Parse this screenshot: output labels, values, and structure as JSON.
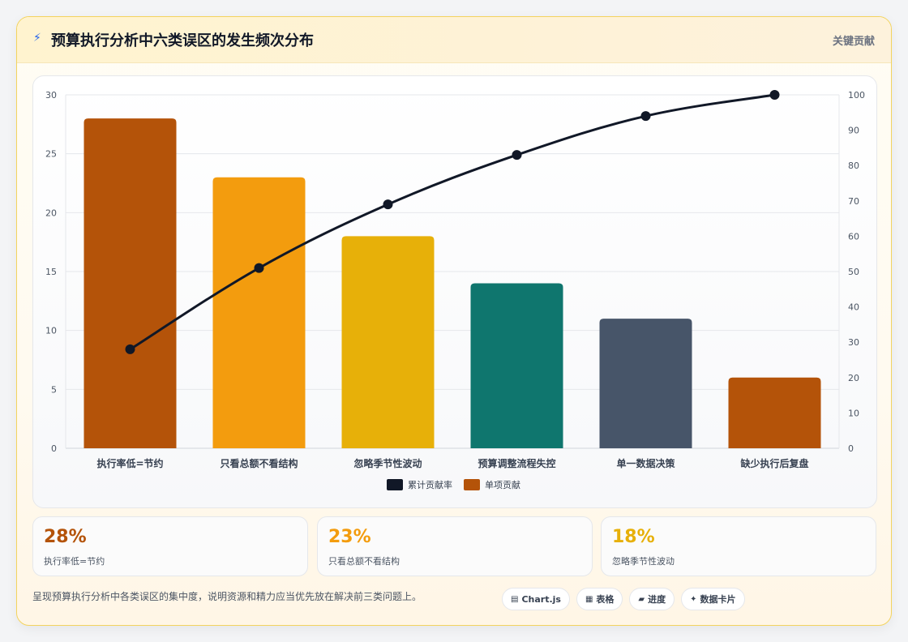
{
  "header": {
    "icon": "bolt-icon",
    "title": "预算执行分析中六类误区的发生频次分布",
    "tag": "关键贡献"
  },
  "chart_data": {
    "type": "bar",
    "categories": [
      "执行率低=节约",
      "只看总额不看结构",
      "忽略季节性波动",
      "预算调整流程失控",
      "单一数据决策",
      "缺少执行后复盘"
    ],
    "series": [
      {
        "name": "累计贡献率",
        "type": "line",
        "axis": "right",
        "color": "#111827",
        "values": [
          28,
          51,
          69,
          83,
          94,
          100
        ]
      },
      {
        "name": "单项贡献",
        "type": "bar",
        "axis": "left",
        "color": "#b45309",
        "values": [
          28,
          23,
          18,
          14,
          11,
          6
        ]
      }
    ],
    "bar_colors": [
      "#b45309",
      "#f39c0e",
      "#e7b009",
      "#0f766e",
      "#475569",
      "#b45309"
    ],
    "y_left": {
      "min": 0,
      "max": 30,
      "ticks": [
        0,
        5,
        10,
        15,
        20,
        25,
        30
      ]
    },
    "y_right": {
      "min": 0,
      "max": 100,
      "ticks": [
        0,
        10,
        20,
        30,
        40,
        50,
        60,
        70,
        80,
        90,
        100
      ]
    },
    "grid": true,
    "legend_position": "bottom"
  },
  "stats": [
    {
      "value": "28%",
      "label": "执行率低=节约",
      "color": "#b45309"
    },
    {
      "value": "23%",
      "label": "只看总额不看结构",
      "color": "#f39c0e"
    },
    {
      "value": "18%",
      "label": "忽略季节性波动",
      "color": "#e7b009"
    }
  ],
  "footer": {
    "text": "呈现预算执行分析中各类误区的集中度，说明资源和精力应当优先放在解决前三类问题上。",
    "chips": [
      {
        "icon": "chart-icon",
        "glyph": "▤",
        "label": "Chart.js"
      },
      {
        "icon": "table-icon",
        "glyph": "▦",
        "label": "表格"
      },
      {
        "icon": "progress-icon",
        "glyph": "▰",
        "label": "进度"
      },
      {
        "icon": "sparkle-icon",
        "glyph": "✦",
        "label": "数据卡片"
      }
    ]
  }
}
